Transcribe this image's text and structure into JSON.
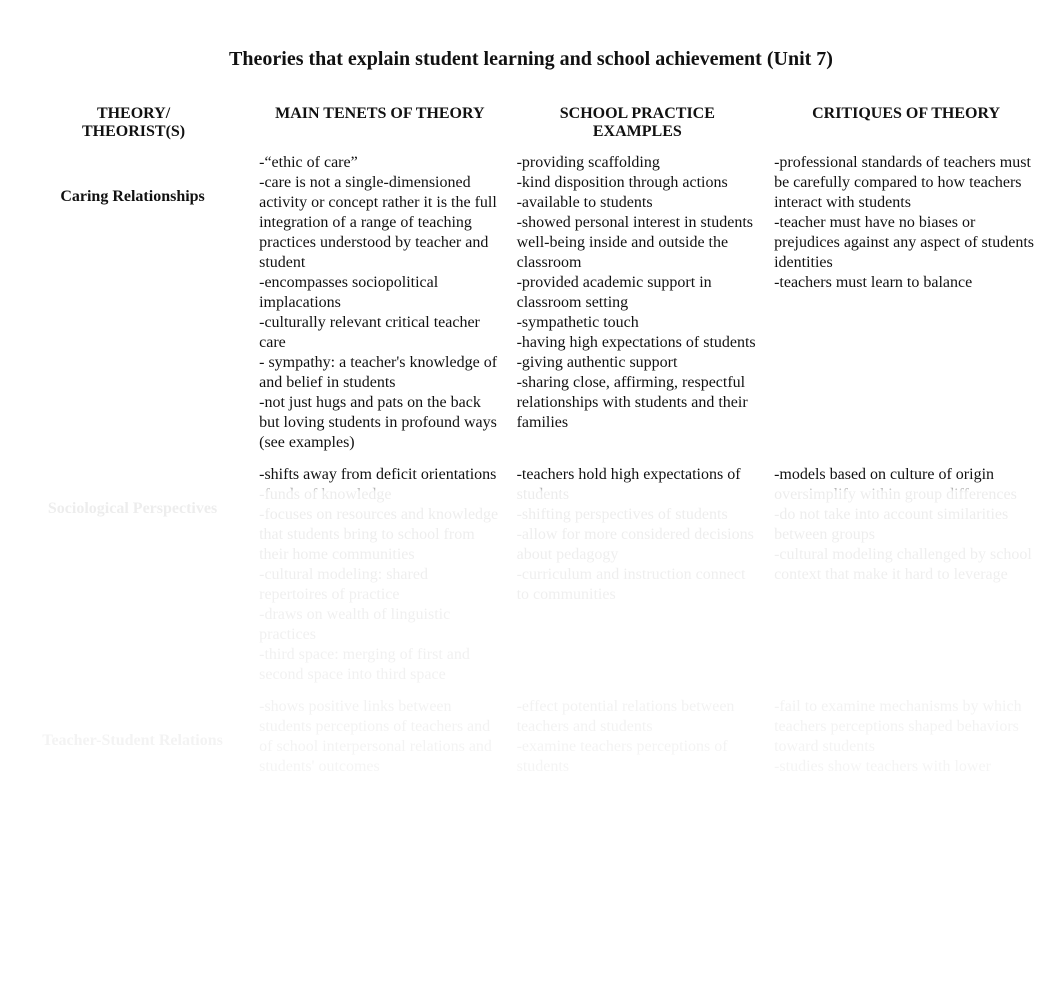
{
  "title": "Theories that explain student learning and school achievement (Unit 7)",
  "headers": {
    "col1a": "THEORY/",
    "col1b": "THEORIST(S)",
    "col2": "MAIN TENETS OF THEORY",
    "col3a": "SCHOOL PRACTICE",
    "col3b": "EXAMPLES",
    "col4": "CRITIQUES OF THEORY"
  },
  "rows": [
    {
      "label": "Caring Relationships",
      "tenets": [
        "-“ethic of care”",
        "-care is not a single-dimensioned activity or concept rather it is the full integration of a range of teaching practices understood by teacher and student",
        "-encompasses sociopolitical implacations",
        "-culturally relevant critical teacher care",
        "- sympathy: a teacher's knowledge of and belief in students",
        "-not just hugs and pats on the back but loving students in profound ways (see examples)"
      ],
      "examples": [
        "-providing scaffolding",
        "-kind disposition through actions",
        "-available to students",
        "-showed personal interest in students well-being inside and outside the classroom",
        "-provided academic support in classroom setting",
        "-sympathetic touch",
        "-having high expectations of students",
        "-giving authentic support",
        "-sharing close, affirming, respectful relationships with students and their families"
      ],
      "critiques": [
        "-professional standards of teachers must be carefully compared to how teachers interact with students",
        "-teacher must have no biases or prejudices against any aspect of students identities",
        "-teachers must learn to balance"
      ]
    },
    {
      "label": "Sociological Perspectives",
      "tenets": [
        "-shifts away from deficit orientations",
        "-funds of knowledge",
        "-focuses on resources and knowledge that students bring to school from their home communities",
        "-cultural modeling: shared repertoires of practice",
        "-draws on wealth of linguistic practices",
        "-third space: merging of first and second space into third space"
      ],
      "examples": [
        "-teachers hold high expectations of students",
        "-shifting perspectives of students",
        "-allow for more considered decisions about pedagogy",
        "-curriculum and instruction connect to communities"
      ],
      "critiques": [
        "-models based on culture of origin oversimplify within group differences",
        "-do not take into account similarities between groups",
        "-cultural modeling challenged by school context that make it hard to leverage"
      ]
    },
    {
      "label": "Teacher-Student Relations",
      "tenets": [
        "-shows positive links between students perceptions of teachers and of school interpersonal relations and students' outcomes"
      ],
      "examples": [
        "-effect potential relations between teachers and students",
        "-examine teachers perceptions of students"
      ],
      "critiques": [
        "-fail to examine mechanisms by which teachers perceptions shaped behaviors toward students",
        "-studies show teachers with lower"
      ]
    }
  ]
}
